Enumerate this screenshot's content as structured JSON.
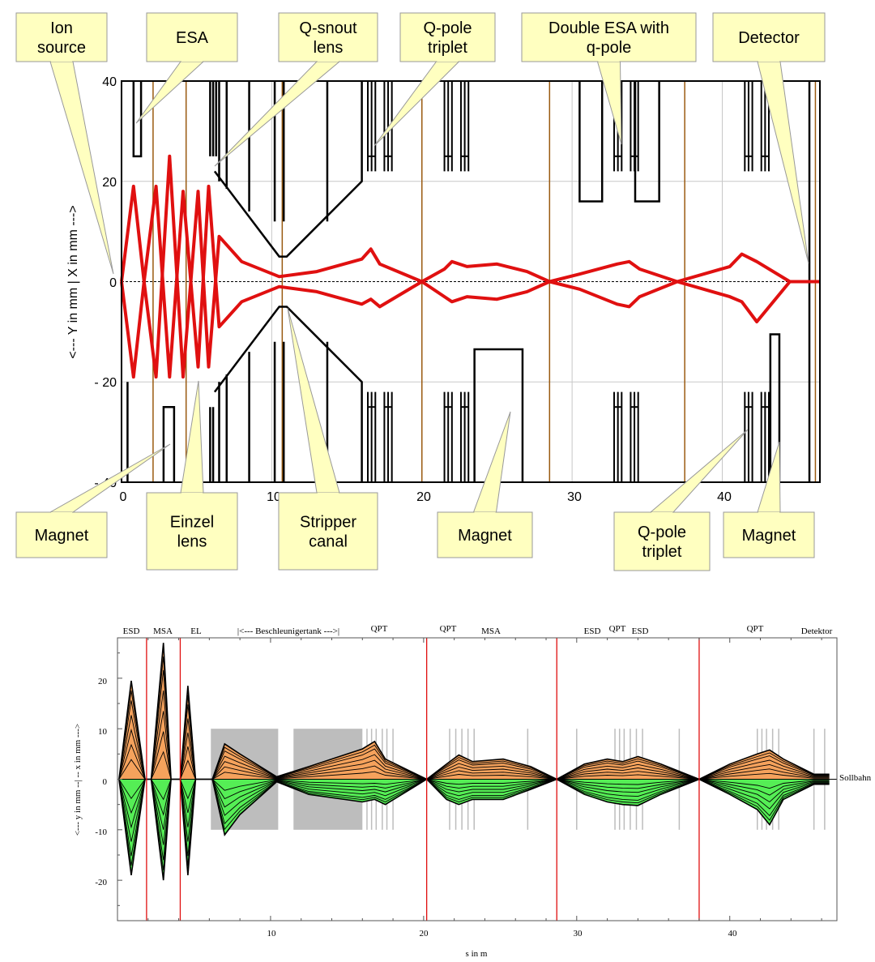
{
  "top": {
    "callouts_top": [
      {
        "line1": "Ion",
        "line2": "source"
      },
      {
        "line1": "ESA",
        "line2": ""
      },
      {
        "line1": "Q-snout",
        "line2": "lens"
      },
      {
        "line1": "Q-pole",
        "line2": "triplet"
      },
      {
        "line1": "Double ESA with",
        "line2": "q-pole"
      },
      {
        "line1": "Detector",
        "line2": ""
      }
    ],
    "callouts_bottom": [
      {
        "line1": "Magnet",
        "line2": ""
      },
      {
        "line1": "Einzel",
        "line2": "lens"
      },
      {
        "line1": "Stripper",
        "line2": "canal"
      },
      {
        "line1": "Magnet",
        "line2": ""
      },
      {
        "line1": "Q-pole",
        "line2": "triplet"
      },
      {
        "line1": "Magnet",
        "line2": ""
      }
    ],
    "ylabel": "<---  Y in mm  |   X in mm   --->",
    "y_ticks": [
      "40",
      "20",
      "0",
      "- 20",
      "- 40"
    ],
    "x_ticks": [
      "0",
      "10",
      "20",
      "30",
      "40"
    ]
  },
  "bottom": {
    "element_labels": [
      "ESD",
      "MSA",
      "EL",
      "|<--- Beschleunigertank --->|",
      "QPT",
      "QPT",
      "MSA",
      "ESD",
      "QPT",
      "ESD",
      "QPT",
      "Detektor"
    ],
    "sollbahn_label": "Sollbahn",
    "ylabel": "<--- y in mm --| -- x in mm --->",
    "xlabel": "s in m",
    "y_ticks": [
      "20",
      "10",
      "0",
      "-10",
      "-20"
    ],
    "x_ticks": [
      "10",
      "20",
      "30",
      "40"
    ]
  },
  "chart_data": [
    {
      "type": "line",
      "xlim": [
        0,
        46.5
      ],
      "ylim": [
        -40,
        40
      ],
      "grid": true,
      "series": [
        {
          "x": [
            0,
            0.8,
            1.5,
            2.3,
            3.2,
            4.1,
            5.1,
            5.8,
            6.5,
            8,
            10.5,
            13,
            16,
            16.6,
            17.2,
            20,
            21.5,
            22,
            23,
            25,
            27,
            28.5,
            30.5,
            33,
            33.8,
            34.5,
            37,
            40.5,
            41.3,
            42.3,
            44.5,
            46.5
          ],
          "y": [
            0,
            19,
            0,
            -19,
            25,
            -19,
            18,
            -17,
            9,
            4,
            1,
            2,
            4.5,
            6.5,
            3.5,
            0,
            2.5,
            4,
            3,
            3.5,
            2,
            0,
            1.5,
            3.5,
            4,
            2.5,
            0,
            3,
            5.5,
            4,
            0,
            0
          ]
        },
        {
          "x": [
            0,
            0.8,
            1.5,
            2.3,
            3.2,
            4.1,
            5.1,
            5.8,
            6.5,
            8,
            10.5,
            13,
            16,
            16.6,
            17.2,
            20,
            21.5,
            22,
            23,
            25,
            27,
            28.5,
            30.5,
            33,
            33.8,
            34.5,
            37,
            40.5,
            41.3,
            42.3,
            44.5,
            46.5
          ],
          "y": [
            0,
            -19,
            0,
            19,
            -19,
            18,
            -17,
            19,
            -9,
            -4,
            -1,
            -2,
            -4.5,
            -3.5,
            -5,
            0,
            -3,
            -4,
            -3,
            -3.5,
            -2,
            0,
            -1.5,
            -4.5,
            -5,
            -3,
            0,
            -3,
            -4,
            -8,
            0,
            0
          ]
        }
      ]
    },
    {
      "type": "area",
      "xlim": [
        0,
        47
      ],
      "ylim": [
        -28,
        28
      ],
      "xlabel": "s in m",
      "series": [
        {
          "x": [
            0.1,
            0.9,
            1.8,
            2.2,
            3,
            3.5,
            4.1,
            4.6,
            5.1,
            6.2,
            7,
            8,
            10.4,
            12.5,
            16,
            16.8,
            17.5,
            20.2,
            21.5,
            22.3,
            23.2,
            25.2,
            27,
            28.7,
            30.5,
            32,
            33,
            34,
            35.5,
            38,
            40,
            41.8,
            42.6,
            43.5,
            45.5,
            46.5
          ],
          "y": [
            0,
            19.5,
            0,
            0,
            27,
            0,
            0,
            18.5,
            0,
            0,
            7,
            5,
            0.5,
            2.5,
            6,
            7.5,
            4,
            0,
            3,
            4.8,
            3.5,
            4,
            2.5,
            0,
            3,
            4,
            3.5,
            4.5,
            3,
            0,
            3,
            5,
            5.8,
            4,
            1,
            1
          ]
        },
        {
          "x": [
            0.1,
            0.9,
            1.8,
            2.2,
            3,
            3.5,
            4.1,
            4.6,
            5.1,
            6.2,
            7,
            8,
            10.4,
            12.5,
            16,
            16.8,
            17.5,
            20.2,
            21.5,
            22.3,
            23.2,
            25.2,
            27,
            28.7,
            30.5,
            32,
            33,
            34,
            35.5,
            38,
            40,
            41.8,
            42.6,
            43.5,
            45.5,
            46.5
          ],
          "y": [
            0,
            -19,
            0,
            0,
            -20,
            0,
            0,
            -19,
            0,
            0,
            -11,
            -7,
            -0.5,
            -3,
            -4.5,
            -4,
            -5,
            0,
            -4,
            -5,
            -4,
            -4,
            -2,
            0,
            -3,
            -4.5,
            -5,
            -5.2,
            -3,
            0,
            -3,
            -6,
            -9,
            -4,
            -1,
            -1
          ]
        }
      ]
    }
  ]
}
